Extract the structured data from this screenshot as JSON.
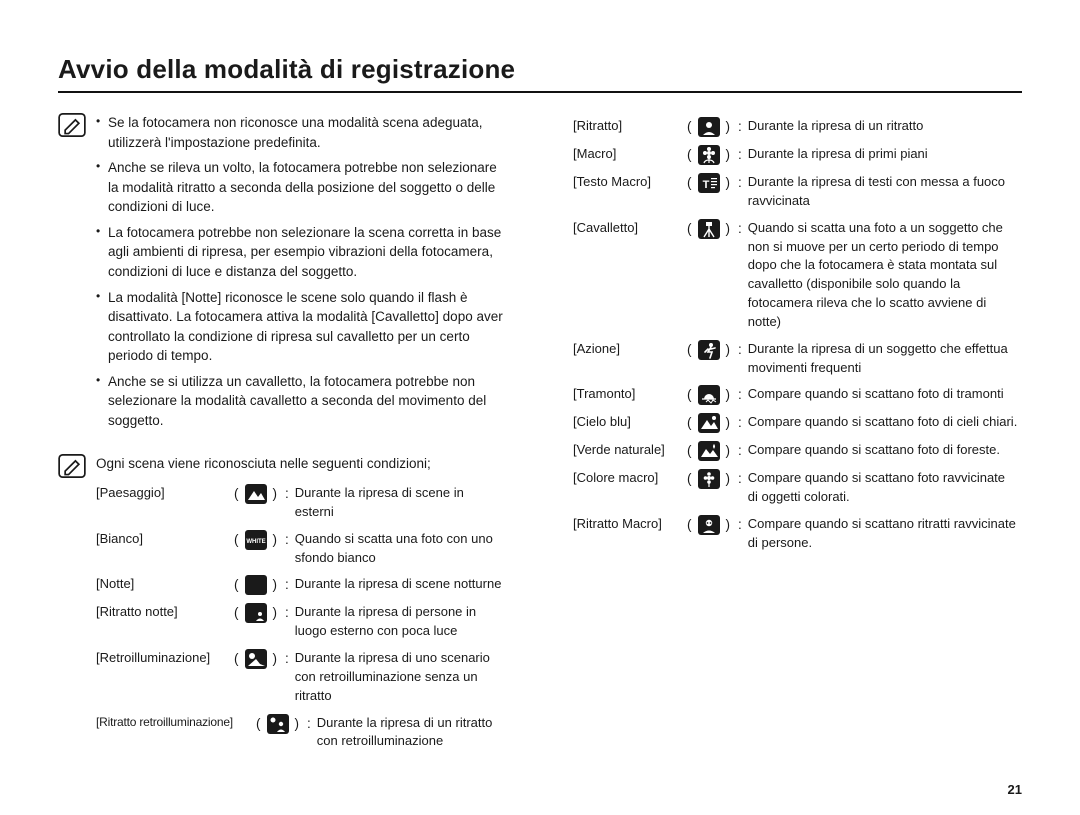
{
  "title": "Avvio della modalità di registrazione",
  "page_number": "21",
  "notes": {
    "bullets": [
      "Se la fotocamera non riconosce una modalità scena adeguata, utilizzerà l'impostazione predefinita.",
      "Anche se rileva un volto, la fotocamera potrebbe non selezionare la modalità ritratto a seconda della posizione del soggetto o delle condizioni di luce.",
      "La fotocamera potrebbe non selezionare la scena corretta in base agli ambienti di ripresa, per esempio vibrazioni della fotocamera, condizioni di luce e distanza del soggetto.",
      "La modalità [Notte] riconosce le scene solo quando il flash è disattivato. La fotocamera attiva la modalità [Cavalletto] dopo aver controllato la condizione di ripresa sul cavalletto per un certo periodo di tempo.",
      "Anche se si utilizza un cavalletto, la fotocamera potrebbe non selezionare la modalità cavalletto a seconda del movimento del soggetto."
    ],
    "intro": "Ogni scena viene riconosciuta nelle seguenti condizioni;"
  },
  "left_scenes": [
    {
      "label": "[Paesaggio]",
      "desc": "Durante la ripresa di scene in esterni",
      "icon": "mountain"
    },
    {
      "label": "[Bianco]",
      "desc": "Quando si scatta una foto con uno sfondo bianco",
      "icon": "white"
    },
    {
      "label": "[Notte]",
      "desc": "Durante la ripresa di scene notturne",
      "icon": "moon"
    },
    {
      "label": "[Ritratto notte]",
      "desc": "Durante la ripresa di persone in luogo esterno con poca luce",
      "icon": "moon-person"
    },
    {
      "label": "[Retroilluminazione]",
      "desc": "Durante la ripresa di uno scenario con retroilluminazione senza un ritratto",
      "icon": "backlight"
    },
    {
      "label": "[Ritratto retroilluminazione]",
      "desc": "Durante la ripresa di un ritratto con retroilluminazione",
      "icon": "backlight-person"
    }
  ],
  "right_scenes": [
    {
      "label": "[Ritratto]",
      "desc": "Durante la ripresa di un ritratto",
      "icon": "person"
    },
    {
      "label": "[Macro]",
      "desc": "Durante la ripresa di primi piani",
      "icon": "flower"
    },
    {
      "label": "[Testo Macro]",
      "desc": "Durante la ripresa di testi con messa a fuoco ravvicinata",
      "icon": "text"
    },
    {
      "label": "[Cavalletto]",
      "desc": "Quando si scatta una foto a un soggetto che non si muove per un certo periodo di tempo dopo che la fotocamera è stata montata sul cavalletto (disponibile solo quando la fotocamera rileva che lo scatto avviene di notte)",
      "icon": "tripod"
    },
    {
      "label": "[Azione]",
      "desc": "Durante la ripresa di un soggetto che effettua movimenti frequenti",
      "icon": "action"
    },
    {
      "label": "[Tramonto]",
      "desc": "Compare quando si scattano foto di tramonti",
      "icon": "sunset"
    },
    {
      "label": "[Cielo blu]",
      "desc": "Compare quando si scattano foto di cieli chiari.",
      "icon": "sky"
    },
    {
      "label": "[Verde naturale]",
      "desc": "Compare quando si scattano foto di foreste.",
      "icon": "green"
    },
    {
      "label": "[Colore macro]",
      "desc": "Compare quando si scattano foto ravvicinate di oggetti colorati.",
      "icon": "flower-color"
    },
    {
      "label": "[Ritratto Macro]",
      "desc": "Compare quando si scattano ritratti ravvicinate di persone.",
      "icon": "person-macro"
    }
  ],
  "colors": {
    "text": "#1a1a1a",
    "rule": "#111111",
    "icon_bg": "#1a1a1a",
    "icon_fg": "#ffffff",
    "background": "#ffffff"
  },
  "typography": {
    "title_pt": 26,
    "body_pt": 13.5,
    "scene_pt": 13
  }
}
